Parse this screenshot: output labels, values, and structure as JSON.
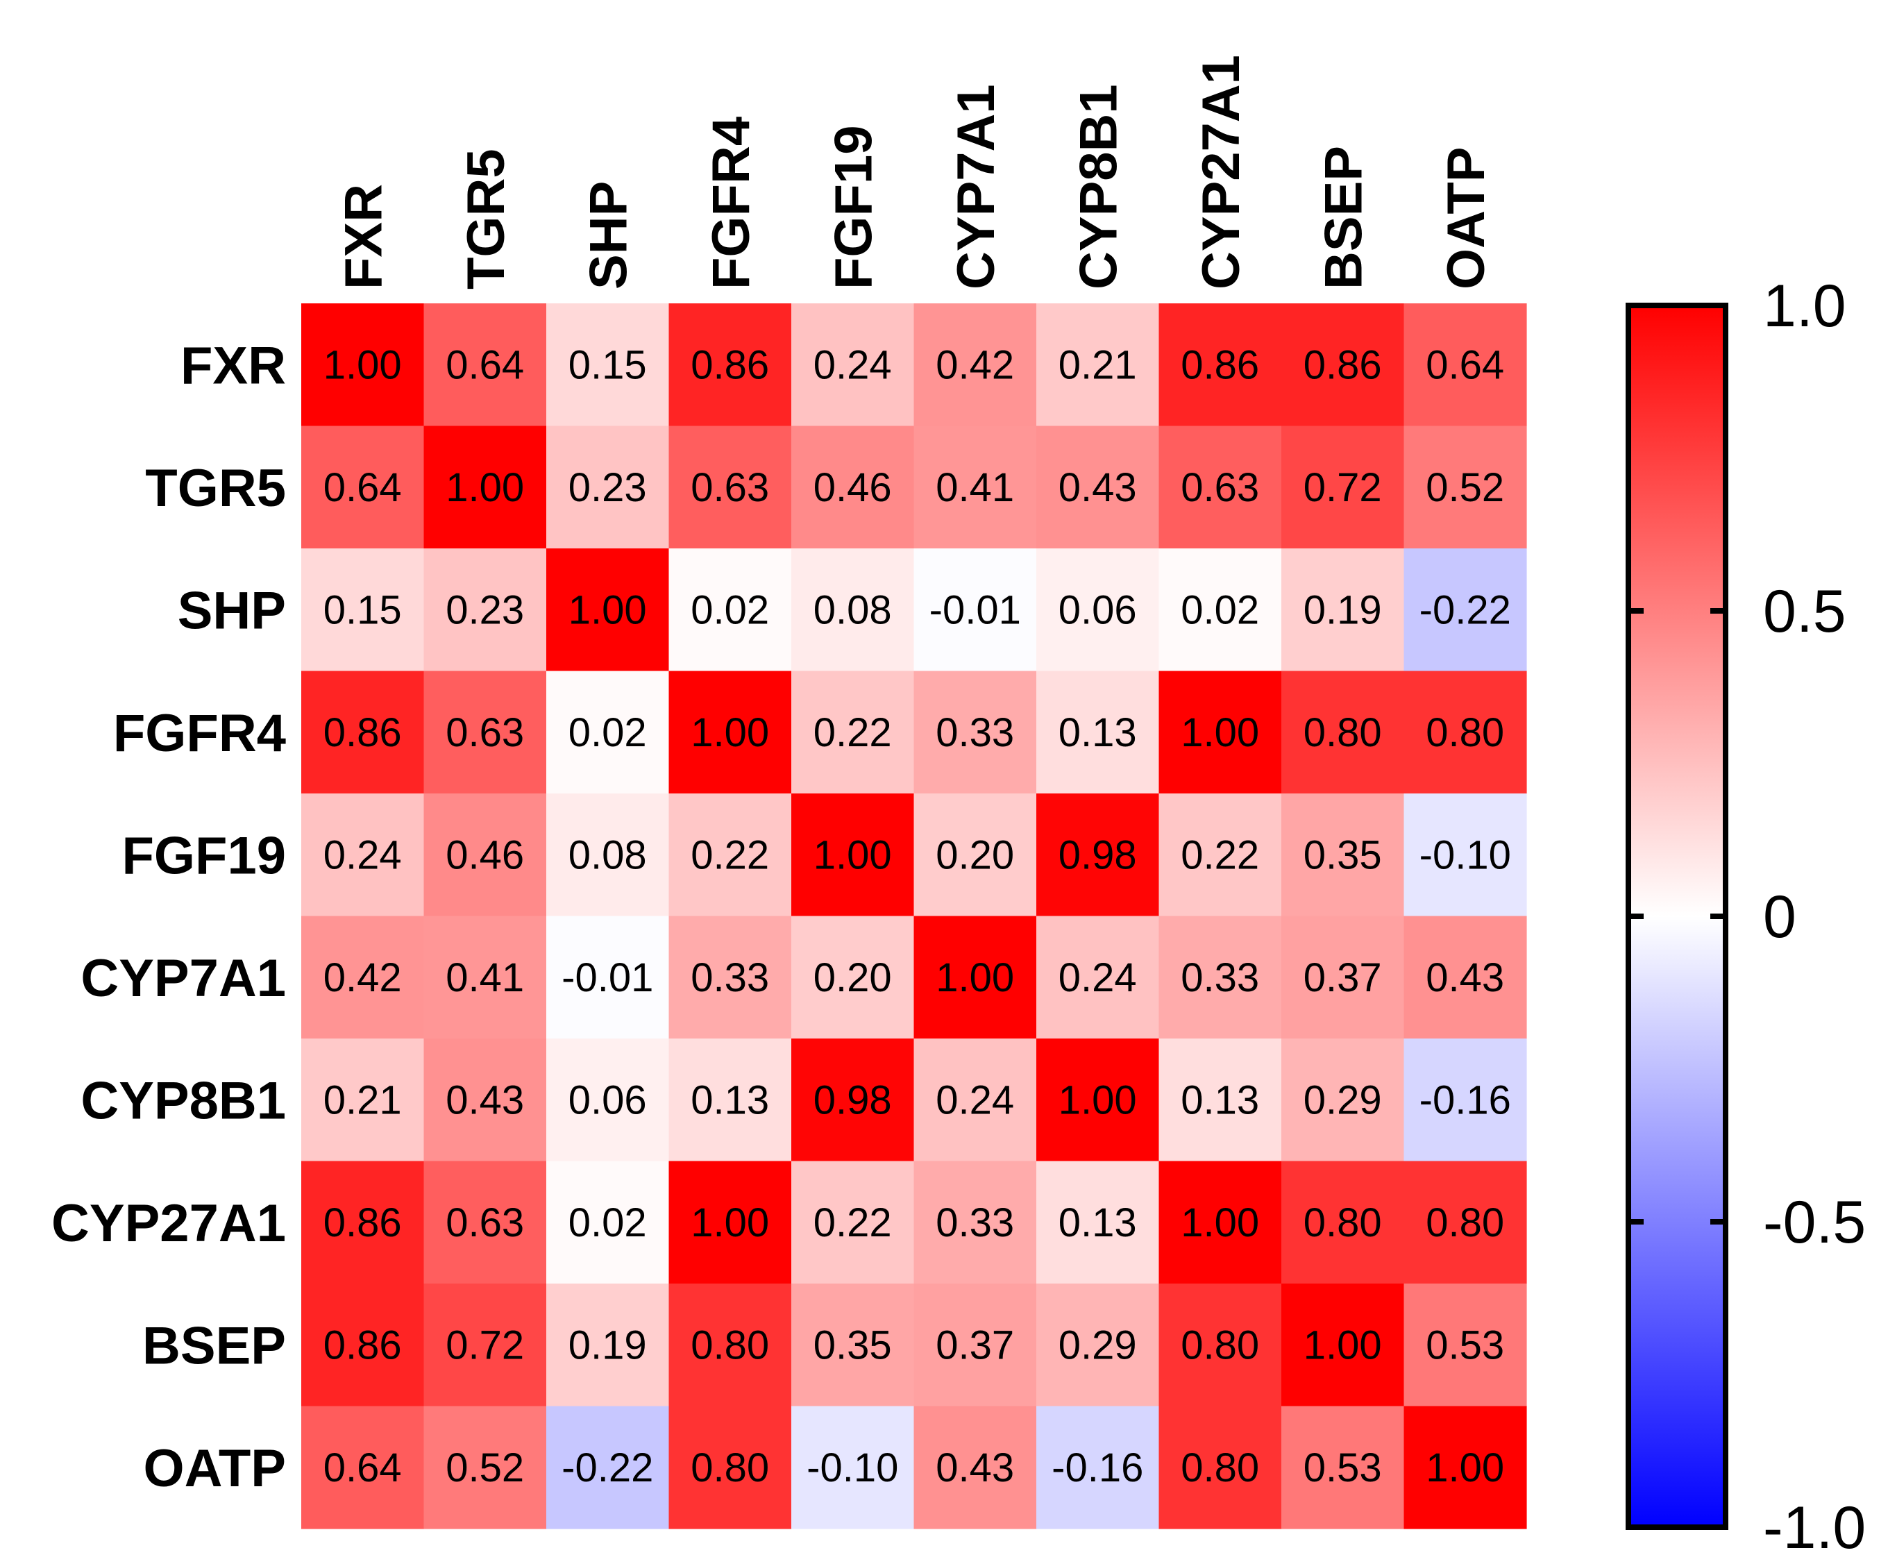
{
  "chart_data": {
    "type": "heatmap",
    "title": "",
    "xlabel": "",
    "ylabel": "",
    "x_categories": [
      "FXR",
      "TGR5",
      "SHP",
      "FGFR4",
      "FGF19",
      "CYP7A1",
      "CYP8B1",
      "CYP27A1",
      "BSEP",
      "OATP"
    ],
    "y_categories": [
      "FXR",
      "TGR5",
      "SHP",
      "FGFR4",
      "FGF19",
      "CYP7A1",
      "CYP8B1",
      "CYP27A1",
      "BSEP",
      "OATP"
    ],
    "values": [
      [
        1.0,
        0.64,
        0.15,
        0.86,
        0.24,
        0.42,
        0.21,
        0.86,
        0.86,
        0.64
      ],
      [
        0.64,
        1.0,
        0.23,
        0.63,
        0.46,
        0.41,
        0.43,
        0.63,
        0.72,
        0.52
      ],
      [
        0.15,
        0.23,
        1.0,
        0.02,
        0.08,
        -0.01,
        0.06,
        0.02,
        0.19,
        -0.22
      ],
      [
        0.86,
        0.63,
        0.02,
        1.0,
        0.22,
        0.33,
        0.13,
        1.0,
        0.8,
        0.8
      ],
      [
        0.24,
        0.46,
        0.08,
        0.22,
        1.0,
        0.2,
        0.98,
        0.22,
        0.35,
        -0.1
      ],
      [
        0.42,
        0.41,
        -0.01,
        0.33,
        0.2,
        1.0,
        0.24,
        0.33,
        0.37,
        0.43
      ],
      [
        0.21,
        0.43,
        0.06,
        0.13,
        0.98,
        0.24,
        1.0,
        0.13,
        0.29,
        -0.16
      ],
      [
        0.86,
        0.63,
        0.02,
        1.0,
        0.22,
        0.33,
        0.13,
        1.0,
        0.8,
        0.8
      ],
      [
        0.86,
        0.72,
        0.19,
        0.8,
        0.35,
        0.37,
        0.29,
        0.8,
        1.0,
        0.53
      ],
      [
        0.64,
        0.52,
        -0.22,
        0.8,
        -0.1,
        0.43,
        -0.16,
        0.8,
        0.53,
        1.0
      ]
    ],
    "value_labels": [
      [
        "1.00",
        "0.64",
        "0.15",
        "0.86",
        "0.24",
        "0.42",
        "0.21",
        "0.86",
        "0.86",
        "0.64"
      ],
      [
        "0.64",
        "1.00",
        "0.23",
        "0.63",
        "0.46",
        "0.41",
        "0.43",
        "0.63",
        "0.72",
        "0.52"
      ],
      [
        "0.15",
        "0.23",
        "1.00",
        "0.02",
        "0.08",
        "-0.01",
        "0.06",
        "0.02",
        "0.19",
        "-0.22"
      ],
      [
        "0.86",
        "0.63",
        "0.02",
        "1.00",
        "0.22",
        "0.33",
        "0.13",
        "1.00",
        "0.80",
        "0.80"
      ],
      [
        "0.24",
        "0.46",
        "0.08",
        "0.22",
        "1.00",
        "0.20",
        "0.98",
        "0.22",
        "0.35",
        "-0.10"
      ],
      [
        "0.42",
        "0.41",
        "-0.01",
        "0.33",
        "0.20",
        "1.00",
        "0.24",
        "0.33",
        "0.37",
        "0.43"
      ],
      [
        "0.21",
        "0.43",
        "0.06",
        "0.13",
        "0.98",
        "0.24",
        "1.00",
        "0.13",
        "0.29",
        "-0.16"
      ],
      [
        "0.86",
        "0.63",
        "0.02",
        "1.00",
        "0.22",
        "0.33",
        "0.13",
        "1.00",
        "0.80",
        "0.80"
      ],
      [
        "0.86",
        "0.72",
        "0.19",
        "0.80",
        "0.35",
        "0.37",
        "0.29",
        "0.80",
        "1.00",
        "0.53"
      ],
      [
        "0.64",
        "0.52",
        "-0.22",
        "0.80",
        "-0.10",
        "0.43",
        "-0.16",
        "0.80",
        "0.53",
        "1.00"
      ]
    ],
    "colorbar": {
      "range": [
        -1.0,
        1.0
      ],
      "ticks": [
        1.0,
        0.5,
        0,
        -0.5,
        -1.0
      ],
      "tick_labels": [
        "1.0",
        "0.5",
        "0",
        "-0.5",
        "-1.0"
      ],
      "colors": {
        "min": "#0000ff",
        "mid": "#ffffff",
        "max": "#ff0000"
      }
    }
  }
}
